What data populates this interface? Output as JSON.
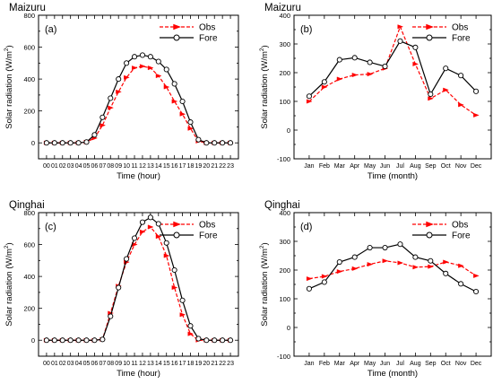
{
  "colors": {
    "obs": "#ff0000",
    "fore": "#000000",
    "axis": "#000000"
  },
  "chart_data": [
    {
      "type": "line",
      "title": "Maizuru",
      "panel_label": "(a)",
      "xlabel": "Time (hour)",
      "ylabel": "Solar radiation (W/m",
      "ylabel_sup": "2",
      "ylabel_close": ")",
      "categories": [
        "00",
        "01",
        "02",
        "03",
        "04",
        "05",
        "06",
        "07",
        "08",
        "09",
        "10",
        "11",
        "12",
        "13",
        "14",
        "15",
        "16",
        "17",
        "18",
        "19",
        "20",
        "21",
        "22",
        "23"
      ],
      "ylim": [
        -100,
        800
      ],
      "yticks": [
        0,
        200,
        400,
        600,
        800
      ],
      "legend_position": "top-right",
      "series": [
        {
          "name": "Obs",
          "style": "dashed-triangle",
          "color": "#ff0000",
          "values": [
            0,
            0,
            0,
            0,
            0,
            5,
            30,
            110,
            220,
            320,
            410,
            470,
            480,
            470,
            420,
            350,
            260,
            180,
            90,
            10,
            0,
            0,
            0,
            0
          ]
        },
        {
          "name": "Fore",
          "style": "solid-circle",
          "color": "#000000",
          "values": [
            0,
            0,
            0,
            0,
            0,
            5,
            50,
            160,
            280,
            400,
            500,
            540,
            550,
            540,
            510,
            460,
            370,
            260,
            130,
            20,
            0,
            0,
            0,
            0
          ]
        }
      ]
    },
    {
      "type": "line",
      "title": "Maizuru",
      "panel_label": "(b)",
      "xlabel": "Time (month)",
      "ylabel": "Solar radiation (W/m",
      "ylabel_sup": "2",
      "ylabel_close": ")",
      "categories": [
        "Jan",
        "Feb",
        "Mar",
        "Apr",
        "May",
        "Jun",
        "Jul",
        "Aug",
        "Sep",
        "Oct",
        "Nov",
        "Dec"
      ],
      "ylim": [
        -100,
        400
      ],
      "yticks": [
        -100,
        0,
        100,
        200,
        300,
        400
      ],
      "legend_position": "top-right",
      "series": [
        {
          "name": "Obs",
          "style": "dashed-triangle",
          "color": "#ff0000",
          "values": [
            100,
            150,
            178,
            192,
            195,
            215,
            360,
            230,
            110,
            140,
            88,
            52
          ]
        },
        {
          "name": "Fore",
          "style": "solid-circle",
          "color": "#000000",
          "values": [
            118,
            168,
            245,
            252,
            236,
            222,
            310,
            288,
            125,
            215,
            190,
            135
          ]
        }
      ]
    },
    {
      "type": "line",
      "title": "Qinghai",
      "panel_label": "(c)",
      "xlabel": "Time (hour)",
      "ylabel": "Solar radiation (W/m",
      "ylabel_sup": "2",
      "ylabel_close": ")",
      "categories": [
        "00",
        "01",
        "02",
        "03",
        "04",
        "05",
        "06",
        "07",
        "08",
        "09",
        "10",
        "11",
        "12",
        "13",
        "14",
        "15",
        "16",
        "17",
        "18",
        "19",
        "20",
        "21",
        "22",
        "23"
      ],
      "ylim": [
        -100,
        800
      ],
      "yticks": [
        0,
        200,
        400,
        600,
        800
      ],
      "legend_position": "top-right",
      "series": [
        {
          "name": "Obs",
          "style": "dashed-triangle",
          "color": "#ff0000",
          "values": [
            0,
            0,
            0,
            0,
            0,
            0,
            0,
            5,
            170,
            340,
            490,
            600,
            680,
            710,
            650,
            530,
            330,
            160,
            40,
            0,
            0,
            0,
            0,
            0
          ]
        },
        {
          "name": "Fore",
          "style": "solid-circle",
          "color": "#000000",
          "values": [
            0,
            0,
            0,
            0,
            0,
            0,
            0,
            5,
            150,
            330,
            510,
            640,
            740,
            770,
            730,
            610,
            440,
            250,
            90,
            10,
            0,
            0,
            0,
            0
          ]
        }
      ]
    },
    {
      "type": "line",
      "title": "Qinghai",
      "panel_label": "(d)",
      "xlabel": "Time (month)",
      "ylabel": "Solar radiation (W/m",
      "ylabel_sup": "2",
      "ylabel_close": ")",
      "categories": [
        "Jan",
        "Feb",
        "Mar",
        "Apr",
        "May",
        "Jun",
        "Jul",
        "Aug",
        "Sep",
        "Oct",
        "Nov",
        "Dec"
      ],
      "ylim": [
        -100,
        400
      ],
      "yticks": [
        -100,
        0,
        100,
        200,
        300,
        400
      ],
      "legend_position": "top-right",
      "series": [
        {
          "name": "Obs",
          "style": "dashed-triangle",
          "color": "#ff0000",
          "values": [
            170,
            178,
            195,
            205,
            220,
            232,
            225,
            210,
            212,
            228,
            215,
            180
          ]
        },
        {
          "name": "Fore",
          "style": "solid-circle",
          "color": "#000000",
          "values": [
            135,
            158,
            228,
            245,
            278,
            278,
            290,
            245,
            232,
            188,
            152,
            125
          ]
        }
      ]
    }
  ]
}
